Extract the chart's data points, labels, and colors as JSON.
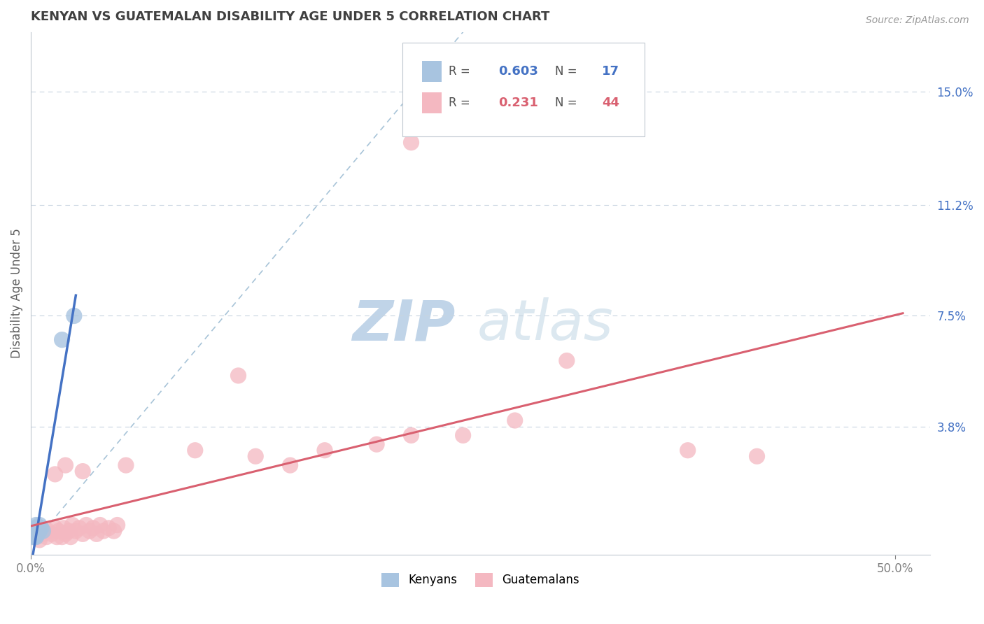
{
  "title": "KENYAN VS GUATEMALAN DISABILITY AGE UNDER 5 CORRELATION CHART",
  "source": "Source: ZipAtlas.com",
  "ylabel": "Disability Age Under 5",
  "y_tick_labels_right": [
    "15.0%",
    "11.2%",
    "7.5%",
    "3.8%"
  ],
  "y_ticks_right": [
    0.15,
    0.112,
    0.075,
    0.038
  ],
  "kenyan_R": 0.603,
  "kenyan_N": 17,
  "guatemalan_R": 0.231,
  "guatemalan_N": 44,
  "kenyan_color": "#a8c4e0",
  "guatemalan_color": "#f4b8c1",
  "kenyan_line_color": "#4472c4",
  "guatemalan_line_color": "#d96070",
  "dash_line_color": "#a8c4d8",
  "background_color": "#ffffff",
  "grid_color": "#c8d4e0",
  "title_color": "#404040",
  "xlim": [
    0.0,
    0.52
  ],
  "ylim": [
    -0.005,
    0.17
  ],
  "kenyan_scatter": [
    [
      0.001,
      0.001
    ],
    [
      0.002,
      0.001
    ],
    [
      0.003,
      0.001
    ],
    [
      0.002,
      0.002
    ],
    [
      0.003,
      0.002
    ],
    [
      0.004,
      0.002
    ],
    [
      0.003,
      0.003
    ],
    [
      0.004,
      0.003
    ],
    [
      0.002,
      0.004
    ],
    [
      0.004,
      0.004
    ],
    [
      0.005,
      0.003
    ],
    [
      0.003,
      0.005
    ],
    [
      0.005,
      0.005
    ],
    [
      0.006,
      0.004
    ],
    [
      0.007,
      0.003
    ],
    [
      0.018,
      0.067
    ],
    [
      0.025,
      0.075
    ]
  ],
  "guatemalan_scatter": [
    [
      0.003,
      0.001
    ],
    [
      0.005,
      0.0
    ],
    [
      0.007,
      0.002
    ],
    [
      0.009,
      0.001
    ],
    [
      0.01,
      0.003
    ],
    [
      0.012,
      0.002
    ],
    [
      0.014,
      0.004
    ],
    [
      0.015,
      0.001
    ],
    [
      0.016,
      0.003
    ],
    [
      0.018,
      0.001
    ],
    [
      0.019,
      0.004
    ],
    [
      0.02,
      0.002
    ],
    [
      0.022,
      0.003
    ],
    [
      0.023,
      0.001
    ],
    [
      0.024,
      0.005
    ],
    [
      0.026,
      0.003
    ],
    [
      0.028,
      0.004
    ],
    [
      0.03,
      0.002
    ],
    [
      0.032,
      0.005
    ],
    [
      0.034,
      0.003
    ],
    [
      0.036,
      0.004
    ],
    [
      0.038,
      0.002
    ],
    [
      0.04,
      0.005
    ],
    [
      0.042,
      0.003
    ],
    [
      0.045,
      0.004
    ],
    [
      0.048,
      0.003
    ],
    [
      0.05,
      0.005
    ],
    [
      0.014,
      0.022
    ],
    [
      0.02,
      0.025
    ],
    [
      0.03,
      0.023
    ],
    [
      0.055,
      0.025
    ],
    [
      0.095,
      0.03
    ],
    [
      0.13,
      0.028
    ],
    [
      0.15,
      0.025
    ],
    [
      0.17,
      0.03
    ],
    [
      0.2,
      0.032
    ],
    [
      0.22,
      0.035
    ],
    [
      0.25,
      0.035
    ],
    [
      0.28,
      0.04
    ],
    [
      0.38,
      0.03
    ],
    [
      0.42,
      0.028
    ],
    [
      0.12,
      0.055
    ],
    [
      0.31,
      0.06
    ],
    [
      0.22,
      0.133
    ]
  ]
}
